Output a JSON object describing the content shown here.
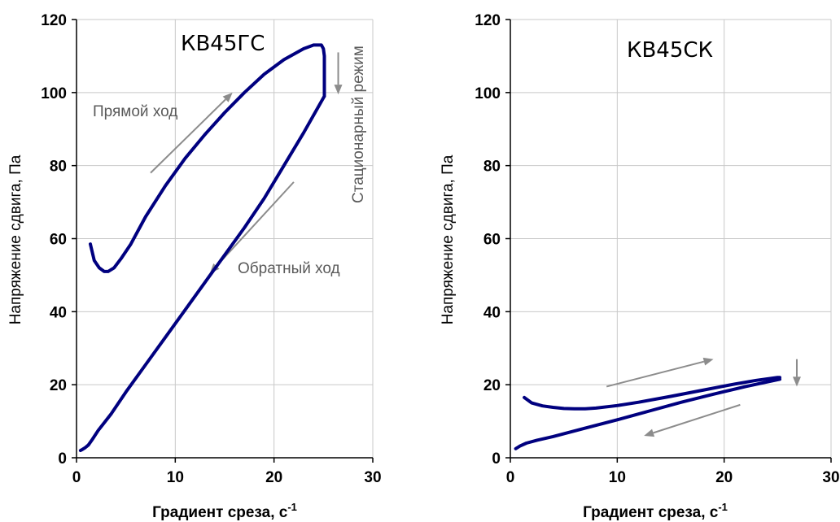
{
  "chart_data": [
    {
      "type": "line",
      "title": "КВ45ГС",
      "xlabel": "Градиент среза, с",
      "xlabel_sup": "-1",
      "ylabel": "Напряжение сдвига, Па",
      "xlim": [
        0,
        30
      ],
      "ylim": [
        0,
        120
      ],
      "xticks": [
        "0",
        "10",
        "20",
        "30"
      ],
      "yticks": [
        "0",
        "20",
        "40",
        "60",
        "80",
        "100",
        "120"
      ],
      "grid": true,
      "line_color": "#00007f",
      "series": [
        {
          "x": [
            1.4,
            1.8,
            2.3,
            2.8,
            3.2,
            3.8,
            4.5,
            5.5,
            7,
            9,
            11,
            13,
            15,
            17,
            19,
            21,
            23,
            24,
            24.5,
            24.8,
            25,
            25.1,
            25.1,
            25.1
          ],
          "y": [
            58.5,
            54,
            52,
            51,
            51,
            52,
            54.5,
            58.5,
            66,
            74.5,
            82,
            88.5,
            94.5,
            100,
            105,
            109,
            112,
            113,
            113,
            113,
            112,
            110,
            105,
            99
          ]
        },
        {
          "x": [
            25.1,
            23,
            21,
            19,
            17,
            15,
            13,
            11,
            9,
            7,
            5,
            3.5,
            2.2,
            1.6,
            1.2,
            0.9,
            0.6,
            0.4
          ],
          "y": [
            99,
            89,
            80,
            71,
            63,
            55.5,
            48,
            40.5,
            33,
            25.5,
            18,
            12,
            7.5,
            5,
            3.5,
            2.8,
            2.3,
            2
          ]
        }
      ],
      "annotations": [
        {
          "text": "Прямой ход"
        },
        {
          "text": "Обратный ход"
        },
        {
          "text": "Стационарный режим"
        }
      ]
    },
    {
      "type": "line",
      "title": "КВ45СК",
      "xlabel": "Градиент среза, с",
      "xlabel_sup": "-1",
      "ylabel": "Напряжение сдвига, Па",
      "xlim": [
        0,
        30
      ],
      "ylim": [
        0,
        120
      ],
      "xticks": [
        "0",
        "10",
        "20",
        "30"
      ],
      "yticks": [
        "0",
        "20",
        "40",
        "60",
        "80",
        "100",
        "120"
      ],
      "grid": true,
      "line_color": "#00007f",
      "series": [
        {
          "x": [
            1.3,
            2,
            3,
            4,
            5,
            6,
            7,
            8,
            10,
            12,
            15,
            18,
            21,
            23,
            25,
            25.2
          ],
          "y": [
            16.5,
            15,
            14.2,
            13.8,
            13.5,
            13.4,
            13.4,
            13.6,
            14.3,
            15.2,
            16.8,
            18.5,
            20.2,
            21.2,
            22,
            22
          ]
        },
        {
          "x": [
            25.2,
            22,
            19,
            16,
            13,
            10,
            7,
            4,
            2.5,
            1.5,
            0.9,
            0.5
          ],
          "y": [
            21.5,
            19.5,
            17.4,
            15.2,
            12.8,
            10.4,
            8.1,
            5.8,
            4.8,
            4,
            3.2,
            2.5
          ]
        }
      ]
    }
  ]
}
